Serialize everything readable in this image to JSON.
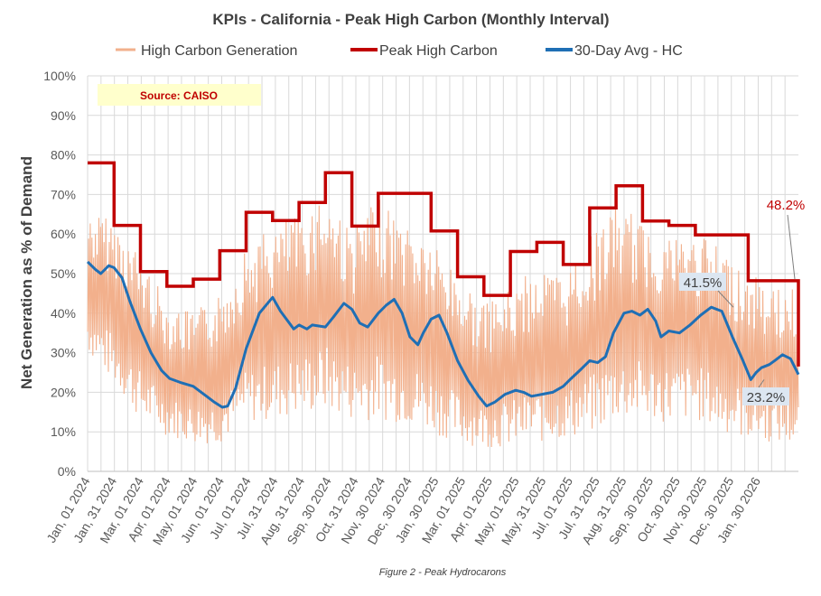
{
  "chart_data": {
    "type": "line",
    "title": "KPIs - California - Peak High Carbon (Monthly Interval)",
    "ylabel": "Net Generation as % of Demand",
    "xlabel": "",
    "ylim": [
      0,
      100
    ],
    "y_ticks": [
      "0%",
      "10%",
      "20%",
      "30%",
      "40%",
      "50%",
      "60%",
      "70%",
      "80%",
      "90%",
      "100%"
    ],
    "x_tick_labels": [
      "Jan, 01 2024",
      "Jan, 31 2024",
      "Mar, 01 2024",
      "Apr, 01 2024",
      "May, 01 2024",
      "Jun, 01 2024",
      "Jul, 01 2024",
      "Jul, 31 2024",
      "Aug, 31 2024",
      "Sep, 30 2024",
      "Oct, 31 2024",
      "Nov, 30 2024",
      "Dec, 30 2024",
      "Jan, 30 2025",
      "Mar, 01 2025",
      "Apr, 01 2025",
      "May, 01 2025",
      "May, 31 2025",
      "Jul, 01 2025",
      "Jul, 31 2025",
      "Aug, 31 2025",
      "Sep, 30 2025",
      "Oct, 30 2025",
      "Nov, 30 2025",
      "Dec, 30 2025",
      "Jan, 30 2026"
    ],
    "grid": true,
    "legend": [
      "High Carbon Generation",
      "Peak High Carbon",
      "30-Day Avg -  HC"
    ],
    "legend_position": "top",
    "colors": {
      "high_carbon": "#f2b08c",
      "peak": "#c00000",
      "avg": "#1f6fb5",
      "grid": "#d9d9d9",
      "source_bg": "#ffffcc"
    },
    "source_label": "Source: CAISO",
    "caption": "Figure 2 - Peak Hydrocarons",
    "x_range_months": [
      0,
      25.9
    ],
    "series": [
      {
        "name": "Peak High Carbon",
        "type": "step",
        "steps": [
          {
            "start": 0,
            "value": 78
          },
          {
            "start": 1,
            "value": 62.2
          },
          {
            "start": 2,
            "value": 50.5
          },
          {
            "start": 3,
            "value": 46.8
          },
          {
            "start": 4,
            "value": 48.6
          },
          {
            "start": 5,
            "value": 55.8
          },
          {
            "start": 6,
            "value": 65.5
          },
          {
            "start": 7,
            "value": 63.4
          },
          {
            "start": 8,
            "value": 68
          },
          {
            "start": 9,
            "value": 75.5
          },
          {
            "start": 10,
            "value": 62
          },
          {
            "start": 11,
            "value": 70.3
          },
          {
            "start": 13,
            "value": 60.8
          },
          {
            "start": 14,
            "value": 49.2
          },
          {
            "start": 15,
            "value": 44.5
          },
          {
            "start": 16,
            "value": 55.6
          },
          {
            "start": 17,
            "value": 57.9
          },
          {
            "start": 18,
            "value": 52.3
          },
          {
            "start": 19,
            "value": 66.6
          },
          {
            "start": 20,
            "value": 72.2
          },
          {
            "start": 21,
            "value": 63.3
          },
          {
            "start": 22,
            "value": 62.2
          },
          {
            "start": 23,
            "value": 59.8
          },
          {
            "start": 25,
            "value": 48.2
          }
        ],
        "end_value": 26.5
      },
      {
        "name": "30-Day Avg -  HC",
        "type": "line",
        "points": [
          [
            0,
            53
          ],
          [
            0.3,
            51
          ],
          [
            0.5,
            50
          ],
          [
            0.8,
            52
          ],
          [
            1.0,
            51.5
          ],
          [
            1.3,
            49
          ],
          [
            1.6,
            43
          ],
          [
            2.0,
            36
          ],
          [
            2.4,
            30
          ],
          [
            2.8,
            25.5
          ],
          [
            3.1,
            23.5
          ],
          [
            3.5,
            22.5
          ],
          [
            4.0,
            21.5
          ],
          [
            4.5,
            19
          ],
          [
            4.8,
            17.5
          ],
          [
            5.1,
            16.2
          ],
          [
            5.3,
            16.5
          ],
          [
            5.6,
            21
          ],
          [
            6.0,
            31
          ],
          [
            6.5,
            40
          ],
          [
            7.0,
            44
          ],
          [
            7.3,
            40.5
          ],
          [
            7.8,
            36
          ],
          [
            8.0,
            37
          ],
          [
            8.3,
            36
          ],
          [
            8.5,
            37
          ],
          [
            9.0,
            36.5
          ],
          [
            9.3,
            39
          ],
          [
            9.7,
            42.5
          ],
          [
            10.0,
            41
          ],
          [
            10.3,
            37.5
          ],
          [
            10.6,
            36.5
          ],
          [
            11.0,
            40
          ],
          [
            11.3,
            42
          ],
          [
            11.6,
            43.5
          ],
          [
            11.9,
            40
          ],
          [
            12.2,
            34
          ],
          [
            12.5,
            32
          ],
          [
            12.7,
            35
          ],
          [
            13.0,
            38.5
          ],
          [
            13.3,
            39.5
          ],
          [
            13.6,
            35
          ],
          [
            14.0,
            28
          ],
          [
            14.4,
            23
          ],
          [
            14.8,
            19
          ],
          [
            15.1,
            16.5
          ],
          [
            15.4,
            17.5
          ],
          [
            15.8,
            19.5
          ],
          [
            16.2,
            20.5
          ],
          [
            16.5,
            20
          ],
          [
            16.8,
            19
          ],
          [
            17.2,
            19.5
          ],
          [
            17.6,
            20
          ],
          [
            18.0,
            21.5
          ],
          [
            18.3,
            23.5
          ],
          [
            18.7,
            26
          ],
          [
            19.0,
            28
          ],
          [
            19.3,
            27.5
          ],
          [
            19.6,
            29
          ],
          [
            19.9,
            35
          ],
          [
            20.3,
            40
          ],
          [
            20.6,
            40.5
          ],
          [
            20.9,
            39.5
          ],
          [
            21.2,
            41
          ],
          [
            21.5,
            38
          ],
          [
            21.7,
            34
          ],
          [
            22.0,
            35.5
          ],
          [
            22.4,
            35
          ],
          [
            22.8,
            37
          ],
          [
            23.2,
            39.5
          ],
          [
            23.6,
            41.5
          ],
          [
            24.0,
            40.5
          ],
          [
            24.4,
            34
          ],
          [
            24.8,
            28
          ],
          [
            25.1,
            23.2
          ],
          [
            25.3,
            25
          ],
          [
            25.5,
            26.2
          ],
          [
            25.8,
            27
          ],
          [
            26.0,
            28
          ],
          [
            26.3,
            29.5
          ],
          [
            26.6,
            28.5
          ],
          [
            26.9,
            24.5
          ]
        ]
      },
      {
        "name": "High Carbon Generation",
        "type": "band",
        "lower": [
          [
            0,
            30
          ],
          [
            1,
            22
          ],
          [
            2,
            13
          ],
          [
            3,
            9
          ],
          [
            4,
            7
          ],
          [
            5,
            7
          ],
          [
            6,
            12
          ],
          [
            7,
            13
          ],
          [
            8,
            14
          ],
          [
            9,
            15
          ],
          [
            10,
            13
          ],
          [
            11,
            13
          ],
          [
            12,
            12
          ],
          [
            13,
            10
          ],
          [
            14,
            7
          ],
          [
            15,
            6
          ],
          [
            16,
            6
          ],
          [
            17,
            7
          ],
          [
            18,
            8
          ],
          [
            19,
            9
          ],
          [
            20,
            13
          ],
          [
            21,
            13
          ],
          [
            22,
            12
          ],
          [
            23,
            13
          ],
          [
            24,
            10
          ],
          [
            25,
            8
          ],
          [
            26,
            7
          ],
          [
            26.9,
            6
          ]
        ],
        "upper": [
          [
            0,
            66
          ],
          [
            1,
            64
          ],
          [
            2,
            55
          ],
          [
            3,
            43
          ],
          [
            4,
            40
          ],
          [
            5,
            45
          ],
          [
            6,
            57
          ],
          [
            7,
            62
          ],
          [
            8,
            65
          ],
          [
            9,
            72
          ],
          [
            10,
            61
          ],
          [
            11,
            69
          ],
          [
            12,
            64
          ],
          [
            13,
            59
          ],
          [
            14,
            50
          ],
          [
            15,
            42
          ],
          [
            16,
            46
          ],
          [
            17,
            52
          ],
          [
            18,
            50
          ],
          [
            19,
            59
          ],
          [
            20,
            68
          ],
          [
            21,
            63
          ],
          [
            22,
            61
          ],
          [
            23,
            60
          ],
          [
            24,
            57
          ],
          [
            25,
            50
          ],
          [
            26,
            47
          ],
          [
            26.9,
            46
          ]
        ]
      }
    ],
    "annotations": [
      {
        "text": "48.2%",
        "series": "Peak High Carbon",
        "value": 48.2
      },
      {
        "text": "41.5%",
        "series": "30-Day Avg -  HC",
        "value": 41.5
      },
      {
        "text": "23.2%",
        "series": "30-Day Avg -  HC",
        "value": 23.2
      }
    ]
  }
}
